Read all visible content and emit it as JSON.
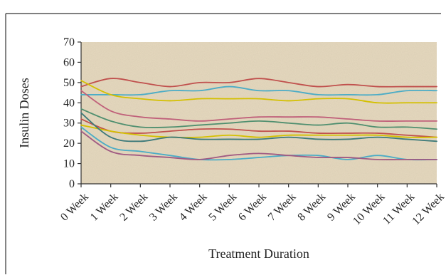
{
  "chart_data": {
    "type": "line",
    "title": "",
    "xlabel": "Treatment Duration",
    "ylabel": "Insulin Doses",
    "ylim": [
      0,
      70
    ],
    "yticks": [
      0,
      10,
      20,
      30,
      40,
      50,
      60,
      70
    ],
    "grid": false,
    "legend": "none",
    "categories": [
      "0 Week",
      "1 Week",
      "2 Week",
      "3 Week",
      "4 Week",
      "5 Week",
      "6 Week",
      "7 Week",
      "8 Week",
      "9 Week",
      "10 Week",
      "11 Week",
      "12 Week"
    ],
    "plot_background": "#e6d9bf",
    "series": [
      {
        "color": "#c0504d",
        "values": [
          48,
          52,
          50,
          48,
          50,
          50,
          52,
          50,
          48,
          49,
          48,
          48,
          48
        ]
      },
      {
        "color": "#4bacc6",
        "values": [
          44,
          44,
          44,
          46,
          46,
          48,
          46,
          46,
          44,
          44,
          44,
          46,
          46
        ]
      },
      {
        "color": "#d4c000",
        "values": [
          51,
          44,
          42,
          41,
          42,
          42,
          42,
          41,
          42,
          42,
          40,
          40,
          40
        ]
      },
      {
        "color": "#c0607a",
        "values": [
          46,
          36,
          33,
          32,
          31,
          32,
          33,
          33,
          33,
          32,
          31,
          31,
          31
        ]
      },
      {
        "color": "#4f8f6f",
        "values": [
          37,
          31,
          28,
          28,
          29,
          30,
          31,
          30,
          29,
          30,
          28,
          28,
          27
        ]
      },
      {
        "color": "#c0504d",
        "values": [
          32,
          26,
          25,
          26,
          27,
          27,
          26,
          26,
          25,
          25,
          25,
          24,
          23
        ]
      },
      {
        "color": "#d4c000",
        "values": [
          29,
          26,
          24,
          23,
          23,
          24,
          23,
          24,
          24,
          24,
          24,
          23,
          23
        ]
      },
      {
        "color": "#3d7a7a",
        "values": [
          35,
          23,
          21,
          23,
          22,
          22,
          22,
          23,
          22,
          22,
          23,
          22,
          21
        ]
      },
      {
        "color": "#4bacc6",
        "values": [
          28,
          18,
          16,
          14,
          12,
          12,
          13,
          14,
          14,
          12,
          14,
          12,
          12
        ]
      },
      {
        "color": "#a05a82",
        "values": [
          26,
          16,
          14,
          13,
          12,
          14,
          15,
          14,
          13,
          13,
          12,
          12,
          12
        ]
      }
    ]
  }
}
